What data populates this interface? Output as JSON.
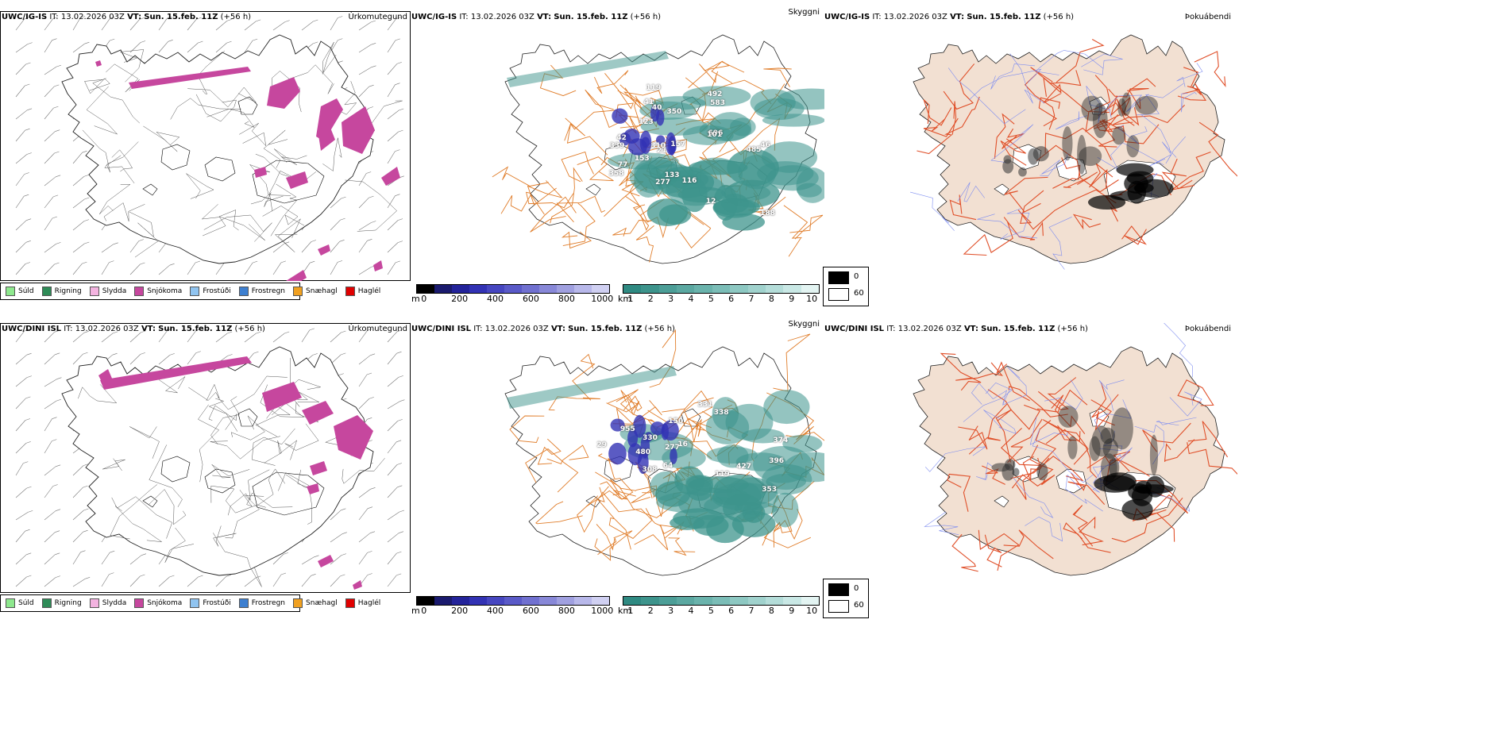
{
  "rows": [
    {
      "model": "UWC/IG-IS",
      "precip": {
        "it_label": "IT:",
        "it": "13.02.2026 03Z",
        "vt_label": "VT:",
        "vt": "Sun. 15.feb. 11Z",
        "lead": "(+56 h)",
        "kind": "Úrkomutegund"
      },
      "cloud": {
        "it_label": "IT:",
        "it": "13.02.2026 03Z",
        "vt_label": "VT:",
        "vt": "Sun. 15.feb. 11Z",
        "lead": "(+56 h)",
        "kind": "Skyggni",
        "labels": [
          "696",
          "119",
          "77",
          "153",
          "116",
          "157",
          "277",
          "46",
          "350",
          "101",
          "485",
          "123",
          "12",
          "339",
          "42",
          "41",
          "492",
          "358",
          "21",
          "310",
          "133",
          "188",
          "583",
          "40"
        ]
      },
      "fog": {
        "it_label": "IT:",
        "it": "13.02.2026 03Z",
        "vt_label": "VT:",
        "vt": "Sun. 15.feb. 11Z",
        "lead": "(+56 h)",
        "kind": "Þokuábendi"
      }
    },
    {
      "model": "UWC/DINI ISL",
      "precip": {
        "it_label": "IT:",
        "it": "13.02.2026 03Z",
        "vt_label": "VT:",
        "vt": "Sun. 15.feb. 11Z",
        "lead": "(+56 h)",
        "kind": "Úrkomutegund"
      },
      "cloud": {
        "it_label": "IT:",
        "it": "13.02.2026 03Z",
        "vt_label": "VT:",
        "vt": "Sun. 15.feb. 11Z",
        "lead": "(+56 h)",
        "kind": "Skyggni",
        "labels": [
          "331",
          "330",
          "955",
          "277",
          "64",
          "119",
          "353",
          "374",
          "308",
          "338",
          "396",
          "29",
          "427",
          "480",
          "150",
          "16"
        ]
      },
      "fog": {
        "it_label": "IT:",
        "it": "13.02.2026 03Z",
        "vt_label": "VT:",
        "vt": "Sun. 15.feb. 11Z",
        "lead": "(+56 h)",
        "kind": "Þokuábendi"
      }
    }
  ],
  "ptype_legend": [
    {
      "label": "Súld",
      "color": "#8ee88e"
    },
    {
      "label": "Rigning",
      "color": "#2e8b57"
    },
    {
      "label": "Slydda",
      "color": "#f3b3e0"
    },
    {
      "label": "Snjókoma",
      "color": "#c6479e"
    },
    {
      "label": "Frostúði",
      "color": "#90c4f0"
    },
    {
      "label": "Frostregn",
      "color": "#3d7fd0"
    },
    {
      "label": "Snæhagl",
      "color": "#f0a020"
    },
    {
      "label": "Haglél",
      "color": "#e00000"
    }
  ],
  "ceiling_bar": {
    "unit": "m",
    "ticks": [
      "0",
      "200",
      "400",
      "600",
      "800",
      "1000"
    ],
    "colors": [
      "#000000",
      "#1a1a6e",
      "#23239a",
      "#3232b4",
      "#4646c0",
      "#5a5ac8",
      "#7070d0",
      "#8888d8",
      "#a0a0e0",
      "#b8b8ea",
      "#d0d0f2"
    ]
  },
  "vis_bar": {
    "unit": "km",
    "ticks": [
      "1",
      "2",
      "3",
      "4",
      "5",
      "6",
      "7",
      "8",
      "9",
      "10"
    ],
    "colors": [
      "#2f8a82",
      "#3d948c",
      "#4c9e97",
      "#5ba8a1",
      "#6ab3ac",
      "#7bbdb7",
      "#8dc8c2",
      "#a0d2cd",
      "#b4ddd9",
      "#c9e8e5",
      "#e3f4f2"
    ]
  },
  "fog_legend": {
    "dark": "0",
    "light": "60"
  },
  "colors": {
    "snow": "#c6479e",
    "roads": "#e07d2a",
    "roads_fog": "#e0502a",
    "land_fog": "#f2e0d2",
    "rivers": "#7d8cf0",
    "cloud_teal": "#3d948c",
    "ceiling_blue": "#3232b4"
  }
}
